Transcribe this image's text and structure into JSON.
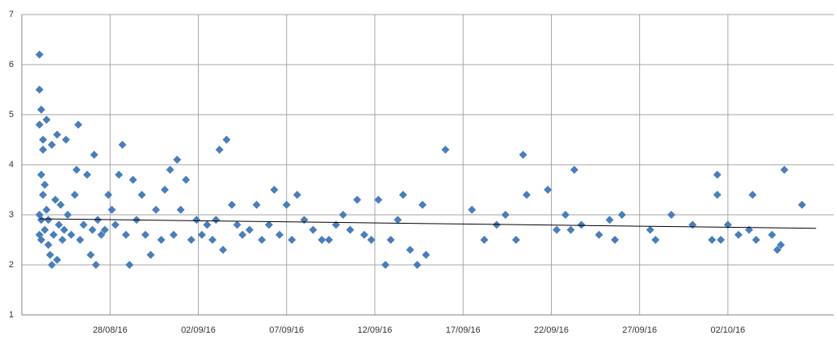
{
  "chart_data": {
    "type": "scatter",
    "marker": "diamond",
    "color": "#4a7ebb",
    "x": [
      42606.0,
      42606.0,
      42606.0,
      42606.0,
      42606.0,
      42606.1,
      42606.1,
      42606.1,
      42606.1,
      42606.2,
      42606.2,
      42606.2,
      42606.3,
      42606.3,
      42606.4,
      42606.4,
      42606.5,
      42606.5,
      42606.6,
      42606.7,
      42606.7,
      42606.8,
      42606.9,
      42607.0,
      42607.0,
      42607.1,
      42607.2,
      42607.3,
      42607.4,
      42607.5,
      42607.6,
      42607.8,
      42608.0,
      42608.1,
      42608.2,
      42608.3,
      42608.5,
      42608.7,
      42608.9,
      42609.0,
      42609.1,
      42609.2,
      42609.3,
      42609.5,
      42609.7,
      42609.9,
      42610.1,
      42610.3,
      42610.5,
      42610.7,
      42610.9,
      42611.1,
      42611.3,
      42611.5,
      42611.8,
      42612.0,
      42612.3,
      42612.6,
      42612.9,
      42613.1,
      42613.4,
      42613.6,
      42613.8,
      42614.0,
      42614.3,
      42614.6,
      42614.9,
      42615.2,
      42615.5,
      42615.8,
      42616.0,
      42616.2,
      42616.4,
      42616.6,
      42616.9,
      42617.2,
      42617.5,
      42617.9,
      42618.3,
      42618.6,
      42619.0,
      42619.3,
      42619.6,
      42620.0,
      42620.3,
      42620.6,
      42621.0,
      42621.5,
      42622.0,
      42622.4,
      42622.8,
      42623.2,
      42623.6,
      42624.0,
      42624.4,
      42624.8,
      42625.2,
      42625.6,
      42625.9,
      42626.3,
      42626.6,
      42627.0,
      42627.4,
      42627.7,
      42627.9,
      42629.0,
      42630.5,
      42631.2,
      42631.9,
      42632.4,
      42633.0,
      42633.4,
      42633.6,
      42634.8,
      42635.3,
      42635.8,
      42636.1,
      42636.3,
      42636.7,
      42637.7,
      42638.3,
      42638.6,
      42639.0,
      42640.6,
      42640.9,
      42641.8,
      42643.0,
      42644.1,
      42644.4,
      42644.4,
      42644.6,
      42645.0,
      42645.6,
      42646.2,
      42646.4,
      42646.6,
      42647.5,
      42647.8,
      42648.0,
      42648.2,
      42649.2
    ],
    "values": [
      6.2,
      5.5,
      4.8,
      3.0,
      2.6,
      5.1,
      3.8,
      2.9,
      2.5,
      4.5,
      4.3,
      3.4,
      3.6,
      2.7,
      4.9,
      3.1,
      2.4,
      2.9,
      2.2,
      4.4,
      2.0,
      2.6,
      3.3,
      4.6,
      2.1,
      2.8,
      3.2,
      2.5,
      2.7,
      4.5,
      3.0,
      2.6,
      3.4,
      3.9,
      4.8,
      2.5,
      2.8,
      3.8,
      2.2,
      2.7,
      4.2,
      2.0,
      2.9,
      2.6,
      2.7,
      3.4,
      3.1,
      2.8,
      3.8,
      4.4,
      2.6,
      2.0,
      3.7,
      2.9,
      3.4,
      2.6,
      2.2,
      3.1,
      2.5,
      3.5,
      3.9,
      2.6,
      4.1,
      3.1,
      3.7,
      2.5,
      2.9,
      2.6,
      2.8,
      2.5,
      2.9,
      4.3,
      2.3,
      4.5,
      3.2,
      2.8,
      2.6,
      2.7,
      3.2,
      2.5,
      2.8,
      3.5,
      2.6,
      3.2,
      2.5,
      3.4,
      2.9,
      2.7,
      2.5,
      2.5,
      2.8,
      3.0,
      2.7,
      3.3,
      2.6,
      2.5,
      3.3,
      2.0,
      2.5,
      2.9,
      3.4,
      2.3,
      2.0,
      3.2,
      2.2,
      4.3,
      3.1,
      2.5,
      2.8,
      3.0,
      2.5,
      4.2,
      3.4,
      3.5,
      2.7,
      3.0,
      2.7,
      3.9,
      2.8,
      2.6,
      2.9,
      2.5,
      3.0,
      2.7,
      2.5,
      3.0,
      2.8,
      2.5,
      3.8,
      3.4,
      2.5,
      2.8,
      2.6,
      2.7,
      3.4,
      2.5,
      2.6,
      2.3,
      2.4,
      3.9,
      3.2
    ],
    "trendline": {
      "x": [
        42606,
        42650
      ],
      "values": [
        2.92,
        2.73
      ],
      "color": "#000000"
    },
    "xlim": [
      42605,
      42651
    ],
    "xticks": [
      {
        "value": 42610,
        "label": "28/08/16"
      },
      {
        "value": 42615,
        "label": "02/09/16"
      },
      {
        "value": 42620,
        "label": "07/09/16"
      },
      {
        "value": 42625,
        "label": "12/09/16"
      },
      {
        "value": 42630,
        "label": "17/09/16"
      },
      {
        "value": 42635,
        "label": "22/09/16"
      },
      {
        "value": 42640,
        "label": "27/09/16"
      },
      {
        "value": 42645,
        "label": "02/10/16"
      }
    ],
    "ylim": [
      1,
      7
    ],
    "yticks": [
      1,
      2,
      3,
      4,
      5,
      6,
      7
    ],
    "grid": true
  }
}
